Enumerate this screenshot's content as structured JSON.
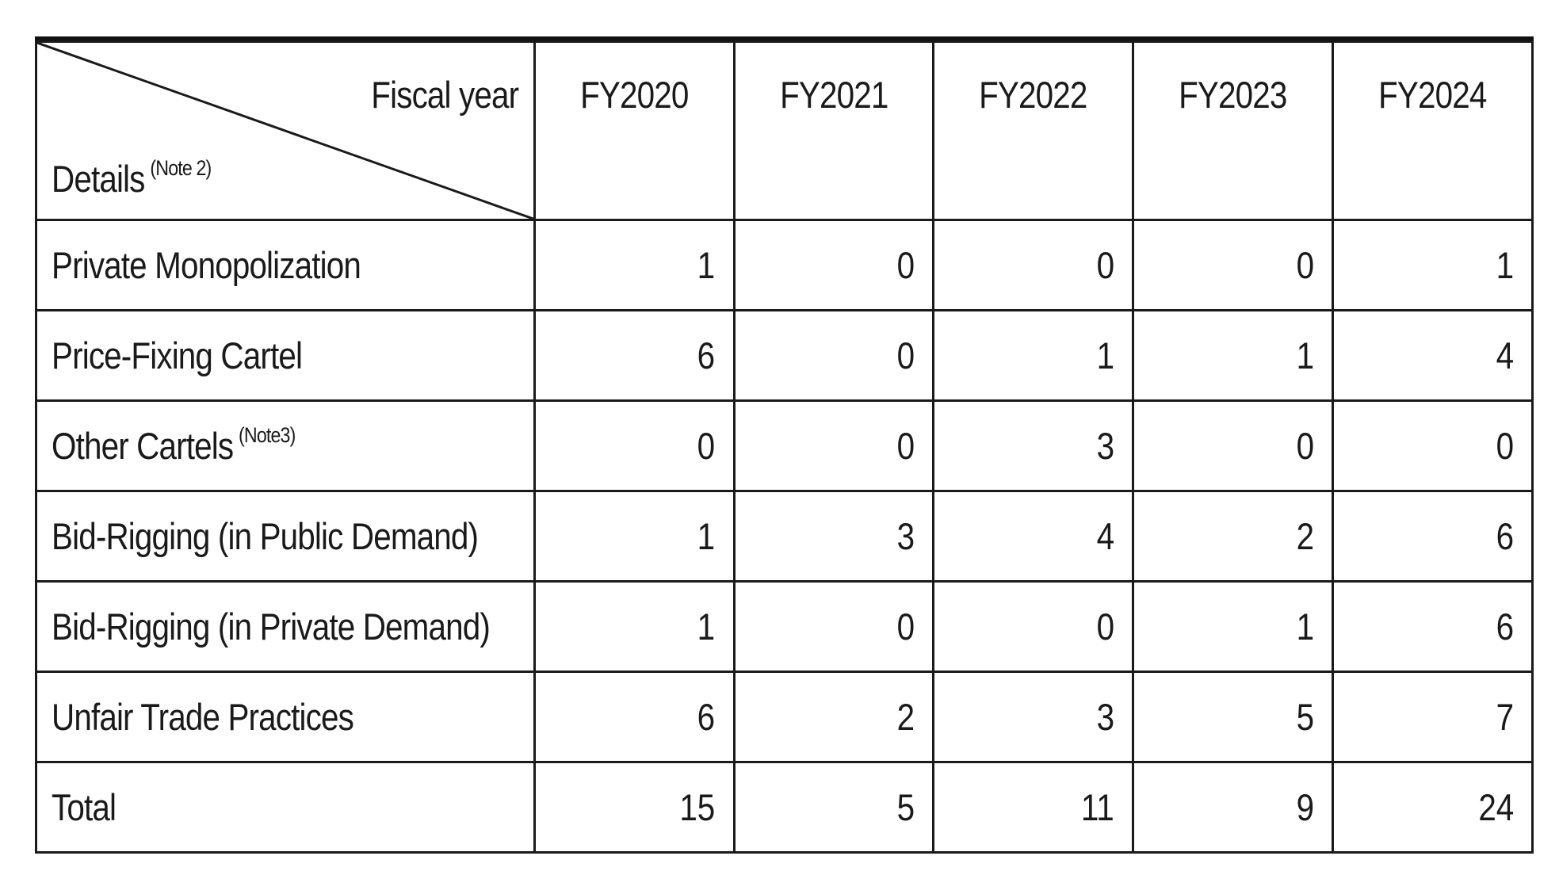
{
  "header": {
    "fiscal_year_label": "Fiscal year",
    "details_label": "Details",
    "details_note": "(Note 2)",
    "years": [
      "FY2020",
      "FY2021",
      "FY2022",
      "FY2023",
      "FY2024"
    ]
  },
  "rows": [
    {
      "label": "Private Monopolization",
      "note": "",
      "values": [
        "1",
        "0",
        "0",
        "0",
        "1"
      ]
    },
    {
      "label": "Price-Fixing Cartel",
      "note": "",
      "values": [
        "6",
        "0",
        "1",
        "1",
        "4"
      ]
    },
    {
      "label": "Other Cartels",
      "note": "(Note3)",
      "values": [
        "0",
        "0",
        "3",
        "0",
        "0"
      ]
    },
    {
      "label": "Bid-Rigging (in Public Demand)",
      "note": "",
      "values": [
        "1",
        "3",
        "4",
        "2",
        "6"
      ]
    },
    {
      "label": "Bid-Rigging (in Private Demand)",
      "note": "",
      "values": [
        "1",
        "0",
        "0",
        "1",
        "6"
      ]
    },
    {
      "label": "Unfair Trade Practices",
      "note": "",
      "values": [
        "6",
        "2",
        "3",
        "5",
        "7"
      ]
    },
    {
      "label": "Total",
      "note": "",
      "values": [
        "15",
        "5",
        "11",
        "9",
        "24"
      ]
    }
  ]
}
